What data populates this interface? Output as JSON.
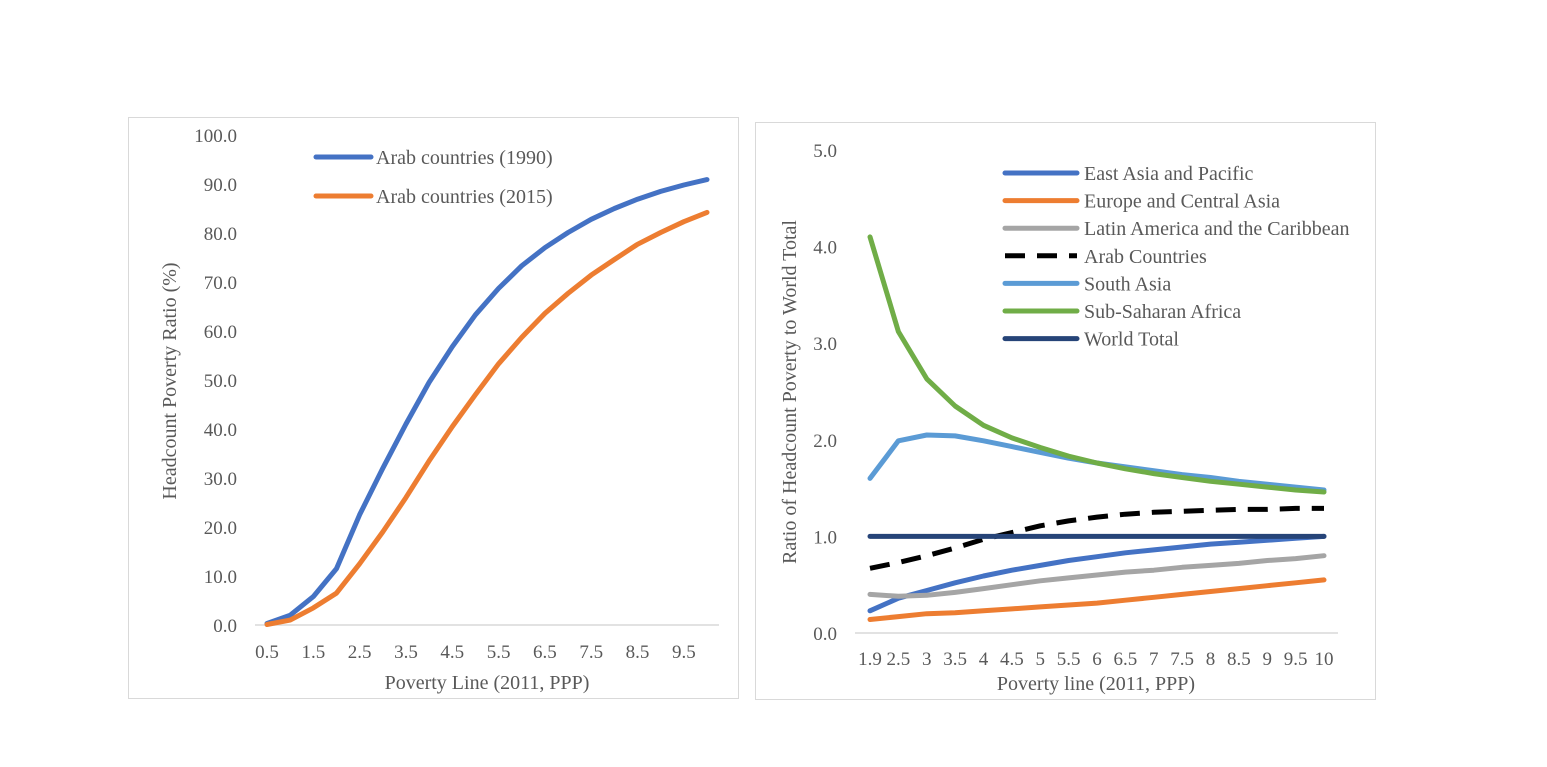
{
  "chart_data": [
    {
      "type": "line",
      "title": "",
      "xlabel": "Poverty Line (2011, PPP)",
      "ylabel": "Headcount Poverty Ratio (%)",
      "ylim": [
        0,
        100
      ],
      "y_ticks": [
        "0.0",
        "10.0",
        "20.0",
        "30.0",
        "40.0",
        "50.0",
        "60.0",
        "70.0",
        "80.0",
        "90.0",
        "100.0"
      ],
      "x": [
        "0.5",
        "1",
        "1.5",
        "2",
        "2.5",
        "3",
        "3.5",
        "4",
        "4.5",
        "5",
        "5.5",
        "6",
        "6.5",
        "7",
        "7.5",
        "8",
        "8.5",
        "9",
        "9.5",
        "10"
      ],
      "x_tick_labels": [
        "0.5",
        "1.5",
        "2.5",
        "3.5",
        "4.5",
        "5.5",
        "6.5",
        "7.5",
        "8.5",
        "9.5"
      ],
      "grid": false,
      "legend_position": "top",
      "series": [
        {
          "name": "Arab countries (1990)",
          "color": "#4472c4",
          "values": [
            0.3,
            2.0,
            5.8,
            11.5,
            22.5,
            32.0,
            41.0,
            49.5,
            56.8,
            63.3,
            68.7,
            73.3,
            77.0,
            80.1,
            82.8,
            85.0,
            86.9,
            88.5,
            89.8,
            90.9
          ]
        },
        {
          "name": "Arab countries (2015)",
          "color": "#ed7d31",
          "values": [
            0.1,
            1.0,
            3.5,
            6.5,
            12.5,
            19.0,
            26.0,
            33.5,
            40.5,
            47.0,
            53.3,
            58.7,
            63.6,
            67.7,
            71.4,
            74.6,
            77.7,
            80.1,
            82.3,
            84.2
          ]
        }
      ]
    },
    {
      "type": "line",
      "title": "",
      "xlabel": "Poverty line (2011, PPP)",
      "ylabel": "Ratio of Headcount Poverty to World Total",
      "ylim": [
        0,
        5
      ],
      "y_ticks": [
        "0.0",
        "1.0",
        "2.0",
        "3.0",
        "4.0",
        "5.0"
      ],
      "x": [
        "1.9",
        "2.5",
        "3",
        "3.5",
        "4",
        "4.5",
        "5",
        "5.5",
        "6",
        "6.5",
        "7",
        "7.5",
        "8",
        "8.5",
        "9",
        "9.5",
        "10"
      ],
      "grid": false,
      "legend_position": "top-right",
      "series": [
        {
          "name": "East Asia and Pacific",
          "color": "#4472c4",
          "dash": false,
          "values": [
            0.23,
            0.36,
            0.44,
            0.52,
            0.59,
            0.65,
            0.7,
            0.75,
            0.79,
            0.83,
            0.86,
            0.89,
            0.92,
            0.94,
            0.96,
            0.98,
            1.0
          ]
        },
        {
          "name": "Europe and Central Asia",
          "color": "#ed7d31",
          "dash": false,
          "values": [
            0.14,
            0.17,
            0.2,
            0.21,
            0.23,
            0.25,
            0.27,
            0.29,
            0.31,
            0.34,
            0.37,
            0.4,
            0.43,
            0.46,
            0.49,
            0.52,
            0.55
          ]
        },
        {
          "name": "Latin America and the Caribbean",
          "color": "#a5a5a5",
          "dash": false,
          "values": [
            0.4,
            0.38,
            0.39,
            0.42,
            0.46,
            0.5,
            0.54,
            0.57,
            0.6,
            0.63,
            0.65,
            0.68,
            0.7,
            0.72,
            0.75,
            0.77,
            0.8
          ]
        },
        {
          "name": "Arab Countries",
          "color": "#000000",
          "dash": true,
          "values": [
            0.67,
            0.73,
            0.8,
            0.88,
            0.97,
            1.04,
            1.11,
            1.16,
            1.2,
            1.23,
            1.25,
            1.26,
            1.27,
            1.28,
            1.28,
            1.29,
            1.29
          ]
        },
        {
          "name": "South Asia",
          "color": "#5b9bd5",
          "dash": false,
          "values": [
            1.6,
            1.99,
            2.05,
            2.04,
            1.99,
            1.93,
            1.87,
            1.81,
            1.76,
            1.72,
            1.68,
            1.64,
            1.61,
            1.57,
            1.54,
            1.51,
            1.48
          ]
        },
        {
          "name": "Sub-Saharan Africa",
          "color": "#70ad47",
          "dash": false,
          "values": [
            4.1,
            3.12,
            2.63,
            2.35,
            2.15,
            2.02,
            1.92,
            1.83,
            1.76,
            1.7,
            1.65,
            1.61,
            1.57,
            1.54,
            1.51,
            1.48,
            1.46
          ]
        },
        {
          "name": "World Total",
          "color": "#264478",
          "dash": false,
          "values": [
            1.0,
            1.0,
            1.0,
            1.0,
            1.0,
            1.0,
            1.0,
            1.0,
            1.0,
            1.0,
            1.0,
            1.0,
            1.0,
            1.0,
            1.0,
            1.0,
            1.0
          ]
        }
      ]
    }
  ]
}
